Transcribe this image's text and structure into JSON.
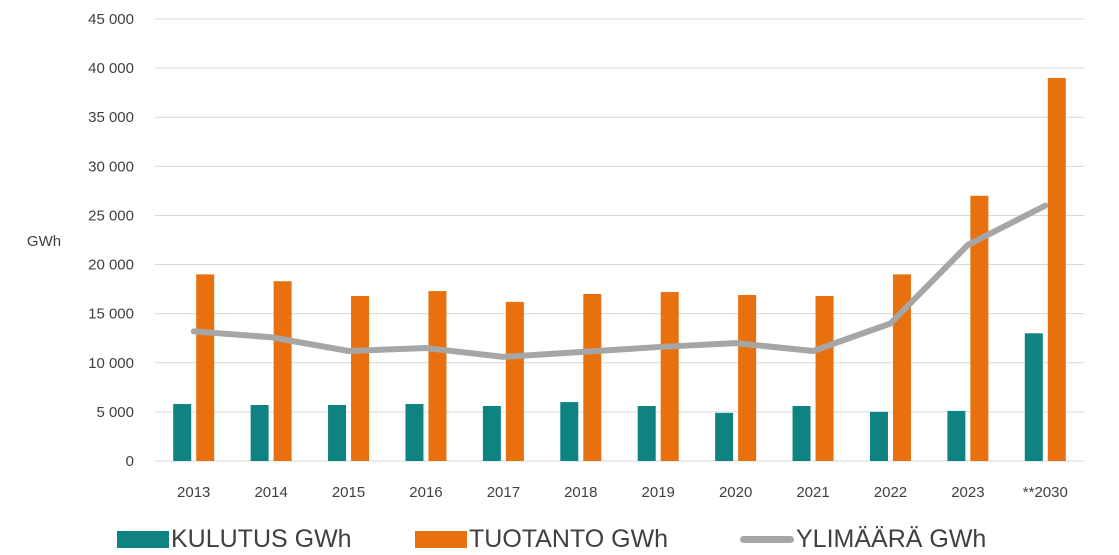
{
  "chart_data": {
    "type": "bar",
    "categories": [
      "2013",
      "2014",
      "2015",
      "2016",
      "2017",
      "2018",
      "2019",
      "2020",
      "2021",
      "2022",
      "2023",
      "**2030"
    ],
    "series": [
      {
        "name": "KULUTUS GWh",
        "kind": "bar",
        "color": "#0e8381",
        "values": [
          5800,
          5700,
          5700,
          5800,
          5600,
          6000,
          5600,
          4900,
          5600,
          5000,
          5100,
          13000
        ]
      },
      {
        "name": "TUOTANTO GWh",
        "kind": "bar",
        "color": "#e8700e",
        "values": [
          19000,
          18300,
          16800,
          17300,
          16200,
          17000,
          17200,
          16900,
          16800,
          19000,
          27000,
          39000
        ]
      },
      {
        "name": "YLIMÄÄRÄ GWh",
        "kind": "line",
        "color": "#a6a6a6",
        "values": [
          13200,
          12600,
          11200,
          11500,
          10600,
          11100,
          11600,
          12000,
          11200,
          14000,
          22000,
          26000
        ]
      }
    ],
    "ylabel": "GWh",
    "ylim": [
      0,
      45000
    ],
    "yticks": [
      0,
      5000,
      10000,
      15000,
      20000,
      25000,
      30000,
      35000,
      40000,
      45000
    ],
    "ytick_labels": [
      "0",
      "5 000",
      "10 000",
      "15 000",
      "20 000",
      "25 000",
      "30 000",
      "35 000",
      "40 000",
      "45 000"
    ],
    "grid": true,
    "legend_position": "bottom"
  }
}
